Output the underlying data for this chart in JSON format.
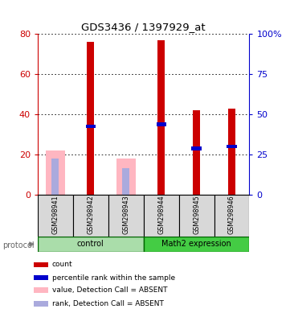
{
  "title": "GDS3436 / 1397929_at",
  "samples": [
    "GSM298941",
    "GSM298942",
    "GSM298943",
    "GSM298944",
    "GSM298945",
    "GSM298946"
  ],
  "count_values": [
    0,
    76,
    0,
    77,
    42,
    43
  ],
  "absent_value_values": [
    22,
    0,
    18,
    0,
    0,
    0
  ],
  "percentile_rank": [
    0,
    34,
    0,
    35,
    23,
    24
  ],
  "absent_rank_values": [
    18,
    0,
    13,
    0,
    0,
    0
  ],
  "has_absent": [
    true,
    false,
    true,
    false,
    false,
    false
  ],
  "has_present": [
    false,
    true,
    false,
    true,
    true,
    true
  ],
  "ylim_left": [
    0,
    80
  ],
  "ylim_right": [
    0,
    100
  ],
  "yticks_left": [
    0,
    20,
    40,
    60,
    80
  ],
  "yticks_right": [
    0,
    25,
    50,
    75,
    100
  ],
  "ytick_labels_right": [
    "0",
    "25",
    "50",
    "75",
    "100%"
  ],
  "color_count": "#CC0000",
  "color_rank": "#0000CC",
  "color_absent_value": "#FFB6C1",
  "color_absent_rank": "#AAAADD",
  "bg_gray": "#D8D8D8",
  "bg_white": "#ffffff",
  "proto_light_green": "#AADDAA",
  "proto_dark_green": "#44CC44",
  "proto_border": "#006600",
  "legend_items": [
    {
      "label": "count",
      "color": "#CC0000"
    },
    {
      "label": "percentile rank within the sample",
      "color": "#0000CC"
    },
    {
      "label": "value, Detection Call = ABSENT",
      "color": "#FFB6C1"
    },
    {
      "label": "rank, Detection Call = ABSENT",
      "color": "#AAAADD"
    }
  ],
  "figsize": [
    3.61,
    3.84
  ],
  "dpi": 100
}
